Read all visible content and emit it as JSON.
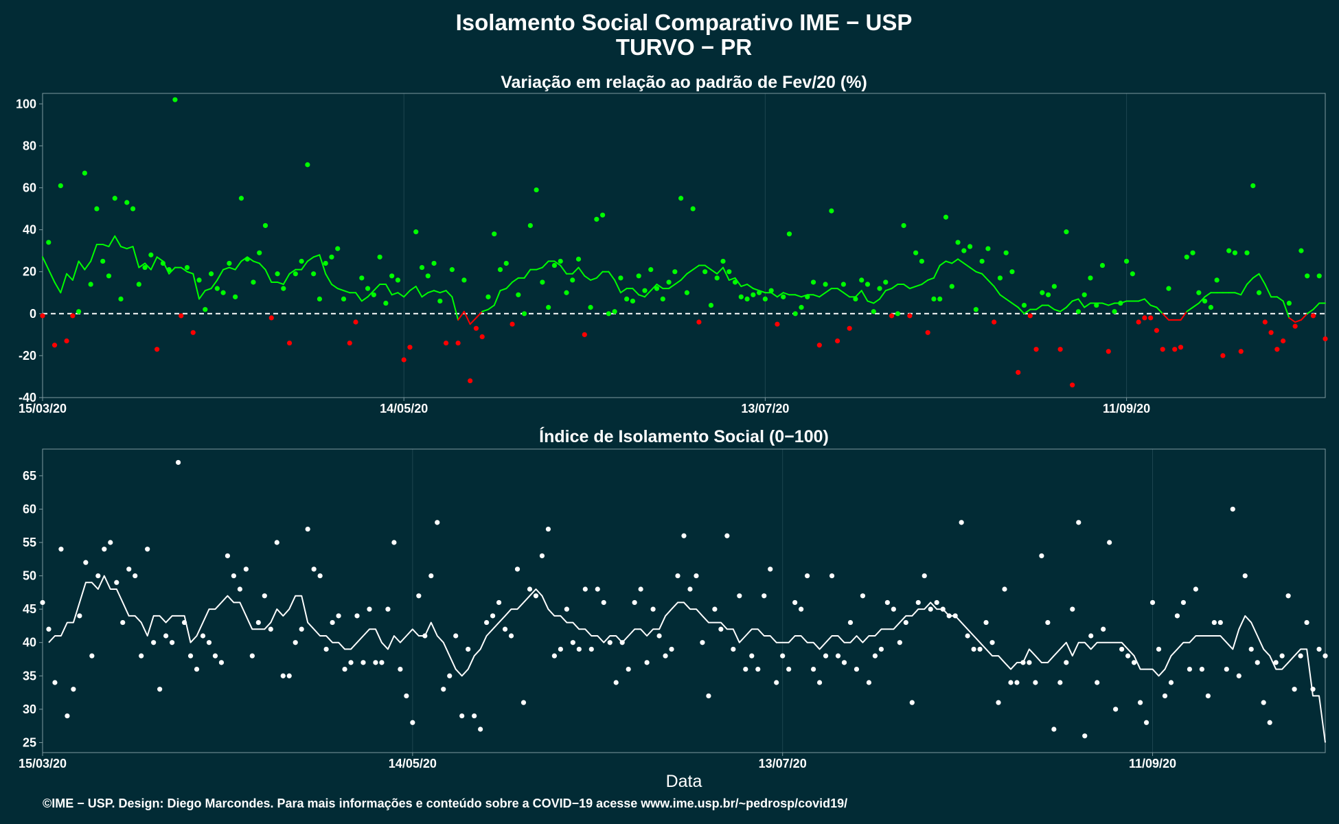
{
  "title_line1": "Isolamento Social Comparativo IME − USP",
  "title_line2": "TURVO − PR",
  "caption": "©IME − USP. Design: Diego Marcondes. Para mais informações e conteúdo sobre a COVID−19 acesse www.ime.usp.br/~pedrosp/covid19/",
  "colors": {
    "background": "#022b35",
    "positive": "#00ff00",
    "negative": "#ff0000",
    "index": "#ffffff",
    "grid": "#1d4550",
    "axis": "#7f9aa0"
  },
  "chart_data": [
    {
      "type": "scatter",
      "title": "Variação em relação ao padrão de Fev/20 (%)",
      "xlabel": "",
      "ylabel": "",
      "x_range": [
        "15/03/20",
        "18/10/20"
      ],
      "x_tick_labels": [
        "15/03/20",
        "14/05/20",
        "13/07/20",
        "11/09/20"
      ],
      "x_tick_day_offsets": [
        0,
        60,
        120,
        180
      ],
      "ylim": [
        -40,
        105
      ],
      "y_ticks": [
        -40,
        -20,
        0,
        20,
        40,
        60,
        80,
        100
      ],
      "reference_line": 0,
      "grid": true,
      "series": [
        {
          "role": "daily_points",
          "color_rule": "green when ≥ 0, red when < 0",
          "start_date": "15/03/20",
          "values": [
            -1,
            34,
            -15,
            61,
            -13,
            -1,
            1,
            67,
            14,
            50,
            25,
            18,
            55,
            7,
            53,
            50,
            14,
            22,
            28,
            -17,
            24,
            21,
            102,
            -1,
            22,
            -9,
            16,
            2,
            19,
            12,
            10,
            24,
            8,
            55,
            26,
            15,
            29,
            42,
            -2,
            19,
            12,
            -14,
            19,
            25,
            71,
            19,
            7,
            24,
            27,
            31,
            7,
            -14,
            -4,
            17,
            12,
            9,
            27,
            5,
            18,
            16,
            -22,
            -16,
            39,
            22,
            18,
            24,
            6,
            -14,
            21,
            -14,
            16,
            -32,
            -7,
            -11,
            8,
            38,
            21,
            24,
            -5,
            9,
            0,
            42,
            59,
            15,
            3,
            23,
            25,
            10,
            16,
            26,
            -10,
            3,
            45,
            47,
            0,
            1,
            17,
            7,
            6,
            18,
            11,
            21,
            12,
            7,
            15,
            20,
            55,
            10,
            50,
            -4,
            20,
            4,
            17,
            25,
            20,
            15,
            8,
            7,
            9,
            10,
            7,
            11,
            -5,
            8,
            38,
            0,
            3,
            8,
            15,
            -15,
            14,
            49,
            -13,
            14,
            -7,
            7,
            16,
            14,
            1,
            12,
            15,
            -1,
            0,
            42,
            -1,
            29,
            25,
            -9,
            7,
            7,
            46,
            13,
            34,
            30,
            32,
            2,
            25,
            31,
            -4,
            17,
            29,
            20,
            -28,
            4,
            -1,
            -17,
            10,
            9,
            13,
            -17,
            39,
            -34,
            1,
            9,
            17,
            4,
            23,
            -18,
            1,
            5,
            25,
            19,
            -4,
            -2,
            -2,
            -8,
            -17,
            12,
            -17,
            -16,
            27,
            29,
            10,
            6,
            3,
            16,
            -20,
            30,
            29,
            -18,
            29,
            61,
            10,
            -4,
            -9,
            -17,
            -13,
            5,
            -6,
            30,
            18,
            -1,
            18,
            -12
          ]
        },
        {
          "role": "moving_average",
          "color_rule": "green when ≥ 0, red when < 0",
          "values": [
            27,
            21,
            15,
            10,
            19,
            16,
            25,
            21,
            25,
            33,
            33,
            32,
            37,
            32,
            31,
            32,
            22,
            24,
            21,
            27,
            25,
            19,
            22,
            22,
            20,
            19,
            7,
            11,
            12,
            16,
            21,
            22,
            21,
            25,
            27,
            25,
            24,
            21,
            15,
            15,
            14,
            19,
            21,
            21,
            25,
            27,
            28,
            19,
            14,
            12,
            11,
            10,
            10,
            6,
            8,
            11,
            14,
            14,
            9,
            10,
            8,
            11,
            13,
            8,
            10,
            11,
            10,
            11,
            8,
            -3,
            1,
            -5,
            -2,
            1,
            2,
            4,
            11,
            12,
            15,
            17,
            17,
            21,
            21,
            22,
            25,
            25,
            23,
            19,
            19,
            22,
            18,
            16,
            17,
            20,
            20,
            16,
            10,
            12,
            12,
            9,
            8,
            11,
            14,
            12,
            12,
            14,
            16,
            19,
            21,
            23,
            23,
            21,
            19,
            22,
            16,
            17,
            13,
            14,
            12,
            11,
            10,
            10,
            8,
            10,
            9,
            9,
            8,
            9,
            9,
            8,
            10,
            12,
            12,
            10,
            8,
            8,
            11,
            6,
            5,
            7,
            11,
            12,
            14,
            14,
            12,
            13,
            14,
            16,
            17,
            23,
            25,
            24,
            26,
            24,
            22,
            20,
            19,
            16,
            13,
            9,
            7,
            5,
            3,
            0,
            2,
            2,
            4,
            4,
            2,
            1,
            3,
            6,
            7,
            3,
            5,
            5,
            5,
            4,
            5,
            5,
            6,
            6,
            6,
            7,
            4,
            3,
            0,
            -3,
            -3,
            -3,
            1,
            3,
            5,
            8,
            10,
            10,
            10,
            10,
            10,
            9,
            14,
            17,
            19,
            14,
            8,
            8,
            6,
            -2,
            -4,
            -3,
            0,
            2,
            5,
            5
          ]
        }
      ]
    },
    {
      "type": "scatter",
      "title": "Índice de Isolamento Social (0−100)",
      "xlabel": "Data",
      "ylabel": "",
      "x_range": [
        "15/03/20",
        "18/10/20"
      ],
      "x_tick_labels": [
        "15/03/20",
        "14/05/20",
        "13/07/20",
        "11/09/20"
      ],
      "x_tick_day_offsets": [
        0,
        60,
        120,
        180
      ],
      "ylim": [
        23.5,
        69
      ],
      "y_ticks": [
        25,
        30,
        35,
        40,
        45,
        50,
        55,
        60,
        65
      ],
      "grid": true,
      "series": [
        {
          "role": "daily_points",
          "color": "#ffffff",
          "start_date": "15/03/20",
          "values": [
            46,
            42,
            34,
            54,
            29,
            33,
            44,
            52,
            38,
            50,
            54,
            55,
            49,
            43,
            51,
            50,
            38,
            54,
            40,
            33,
            41,
            40,
            67,
            43,
            38,
            36,
            41,
            40,
            38,
            37,
            53,
            50,
            48,
            51,
            38,
            43,
            47,
            42,
            55,
            35,
            35,
            40,
            42,
            57,
            51,
            50,
            39,
            43,
            44,
            36,
            37,
            44,
            37,
            45,
            37,
            37,
            45,
            55,
            36,
            32,
            28,
            47,
            41,
            50,
            58,
            33,
            35,
            41,
            29,
            39,
            29,
            27,
            43,
            44,
            46,
            42,
            41,
            51,
            31,
            48,
            47,
            53,
            57,
            38,
            39,
            45,
            40,
            39,
            48,
            39,
            48,
            46,
            40,
            34,
            40,
            36,
            46,
            48,
            37,
            45,
            41,
            38,
            39,
            50,
            56,
            48,
            50,
            40,
            32,
            45,
            42,
            56,
            39,
            47,
            36,
            38,
            36,
            47,
            51,
            34,
            38,
            36,
            46,
            45,
            50,
            36,
            34,
            38,
            50,
            38,
            37,
            43,
            36,
            47,
            34,
            38,
            39,
            46,
            45,
            40,
            43,
            31,
            46,
            50,
            45,
            46,
            45,
            44,
            44,
            58,
            41,
            39,
            39,
            43,
            40,
            31,
            48,
            34,
            34,
            37,
            37,
            34,
            53,
            43,
            27,
            34,
            37,
            45,
            58,
            26,
            41,
            34,
            42,
            55,
            30,
            39,
            38,
            37,
            31,
            28,
            46,
            39,
            32,
            34,
            44,
            46,
            36,
            48,
            36,
            32,
            43,
            43,
            36,
            60,
            35,
            50,
            39,
            37,
            31,
            28,
            37,
            38,
            47,
            33,
            38,
            43,
            33,
            39,
            38
          ]
        },
        {
          "role": "moving_average",
          "color": "#ffffff",
          "values": [
            40,
            41,
            41,
            43,
            43,
            46,
            49,
            49,
            48,
            50,
            48,
            48,
            46,
            44,
            44,
            43,
            41,
            44,
            44,
            43,
            44,
            44,
            44,
            40,
            41,
            43,
            45,
            45,
            46,
            47,
            46,
            46,
            44,
            42,
            42,
            42,
            43,
            45,
            44,
            45,
            47,
            47,
            43,
            42,
            41,
            41,
            40,
            40,
            39,
            39,
            40,
            41,
            42,
            42,
            40,
            39,
            41,
            40,
            41,
            42,
            41,
            41,
            43,
            41,
            40,
            38,
            36,
            35,
            36,
            38,
            39,
            41,
            42,
            43,
            44,
            45,
            45,
            46,
            47,
            48,
            47,
            45,
            44,
            44,
            43,
            43,
            42,
            42,
            41,
            41,
            40,
            41,
            41,
            40,
            41,
            42,
            42,
            41,
            42,
            42,
            44,
            45,
            46,
            46,
            45,
            45,
            44,
            43,
            43,
            43,
            42,
            42,
            40,
            41,
            42,
            42,
            41,
            41,
            40,
            40,
            40,
            41,
            41,
            40,
            40,
            39,
            40,
            41,
            41,
            40,
            40,
            41,
            40,
            41,
            41,
            42,
            42,
            42,
            43,
            44,
            44,
            45,
            45,
            46,
            45,
            45,
            44,
            44,
            43,
            42,
            41,
            40,
            39,
            38,
            38,
            37,
            36,
            37,
            37,
            39,
            38,
            37,
            37,
            38,
            39,
            40,
            38,
            40,
            40,
            39,
            40,
            40,
            40,
            40,
            40,
            39,
            38,
            36,
            36,
            36,
            35,
            36,
            38,
            39,
            40,
            40,
            41,
            41,
            41,
            41,
            41,
            40,
            39,
            42,
            44,
            43,
            41,
            39,
            38,
            36,
            36,
            37,
            38,
            39,
            39,
            32,
            32,
            25
          ]
        }
      ]
    }
  ]
}
